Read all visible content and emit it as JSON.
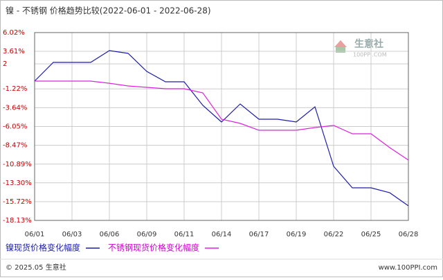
{
  "chart_data": {
    "type": "line",
    "title": "镍 - 不锈钢 价格趋势比较(2022-06-01 - 2022-06-28)",
    "categories": [
      "06/01",
      null,
      "06/03",
      null,
      "06/06",
      null,
      "06/09",
      null,
      "06/11",
      null,
      "06/14",
      null,
      "06/17",
      null,
      "06/19",
      null,
      "06/22",
      null,
      "06/25",
      null,
      "06/28"
    ],
    "series": [
      {
        "name": "镍现货价格变化幅度",
        "color": "#1c1caa",
        "values": [
          -0.22,
          2.19,
          2.19,
          2.19,
          3.7,
          3.35,
          1.03,
          -0.31,
          -0.31,
          -3.34,
          -5.48,
          -3.16,
          -5.12,
          -5.12,
          -5.48,
          -3.52,
          -11.18,
          -13.94,
          -13.94,
          -14.57,
          -16.26
        ]
      },
      {
        "name": "不锈钢现货价格变化幅度",
        "color": "#dd22dd",
        "values": [
          -0.22,
          -0.22,
          -0.22,
          -0.22,
          -0.49,
          -0.84,
          -1.02,
          -1.2,
          -1.2,
          -1.73,
          -5.12,
          -5.65,
          -6.54,
          -6.54,
          -6.54,
          -6.19,
          -5.92,
          -6.99,
          -6.99,
          -8.77,
          -10.38
        ]
      }
    ],
    "ylim": [
      -18.13,
      6.02
    ],
    "yticks": [
      {
        "value": 6.02,
        "label": "6.02%"
      },
      {
        "value": 3.61,
        "label": "3.61%"
      },
      {
        "value": 2,
        "label": "2"
      },
      {
        "value": -1.22,
        "label": "-1.22%"
      },
      {
        "value": -3.64,
        "label": "-3.64%"
      },
      {
        "value": -6.05,
        "label": "-6.05%"
      },
      {
        "value": -8.47,
        "label": "-8.47%"
      },
      {
        "value": -10.89,
        "label": "-10.89%"
      },
      {
        "value": -13.3,
        "label": "-13.30%"
      },
      {
        "value": -15.72,
        "label": "-15.72%"
      },
      {
        "value": -18.13,
        "label": "-18.13%"
      }
    ],
    "grid": true,
    "legend": "bottom-left"
  },
  "watermark": {
    "name": "生意社",
    "site": "100PPI.COM"
  },
  "footer": {
    "copyright": "© 2025.05 生意社",
    "site": "www.100PPI.com"
  }
}
